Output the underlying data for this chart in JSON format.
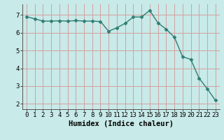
{
  "x": [
    0,
    1,
    2,
    3,
    4,
    5,
    6,
    7,
    8,
    9,
    10,
    11,
    12,
    13,
    14,
    15,
    16,
    17,
    18,
    19,
    20,
    21,
    22,
    23
  ],
  "y": [
    6.9,
    6.78,
    6.65,
    6.65,
    6.67,
    6.65,
    6.68,
    6.65,
    6.65,
    6.63,
    6.08,
    6.28,
    6.52,
    6.88,
    6.88,
    7.25,
    6.55,
    6.2,
    5.75,
    4.65,
    4.5,
    3.45,
    2.85,
    2.2
  ],
  "line_color": "#2e7d72",
  "marker": "D",
  "marker_size": 2.5,
  "bg_color": "#c8eae8",
  "grid_color": "#d4a0a0",
  "xlabel": "Humidex (Indice chaleur)",
  "xlim": [
    -0.5,
    23.5
  ],
  "ylim": [
    1.7,
    7.6
  ],
  "yticks": [
    2,
    3,
    4,
    5,
    6,
    7
  ],
  "xticks": [
    0,
    1,
    2,
    3,
    4,
    5,
    6,
    7,
    8,
    9,
    10,
    11,
    12,
    13,
    14,
    15,
    16,
    17,
    18,
    19,
    20,
    21,
    22,
    23
  ],
  "xlabel_fontsize": 7.5,
  "tick_fontsize": 6.5,
  "line_width": 1.0
}
